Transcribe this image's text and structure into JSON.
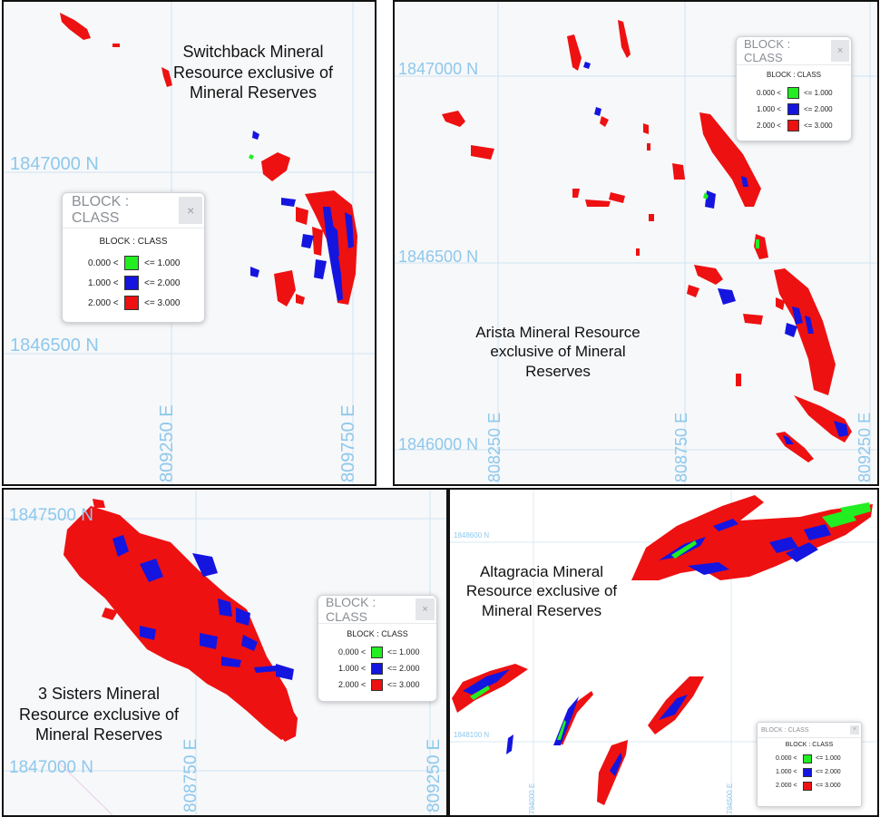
{
  "legend": {
    "header": "BLOCK : CLASS",
    "subtitle": "BLOCK : CLASS",
    "close_glyph": "×",
    "rows": [
      {
        "low": "0.000 <",
        "high": "<= 1.000",
        "color": "#22ee22"
      },
      {
        "low": "1.000 <",
        "high": "<= 2.000",
        "color": "#1515e0"
      },
      {
        "low": "2.000 <",
        "high": "<= 3.000",
        "color": "#ee1111"
      }
    ]
  },
  "panels": {
    "switchback": {
      "title": "Switchback Mineral Resource exclusive of Mineral Reserves",
      "northings": [
        "1847000 N",
        "1846500 N"
      ],
      "eastings": [
        "809250 E",
        "809750 E"
      ]
    },
    "arista": {
      "title": "Arista Mineral Resource exclusive of Mineral Reserves",
      "northings": [
        "1847000 N",
        "1846500 N",
        "1846000 N"
      ],
      "eastings": [
        "808250 E",
        "808750 E",
        "809250 E"
      ]
    },
    "three_sisters": {
      "title": "3 Sisters Mineral Resource exclusive of Mineral Reserves",
      "northings": [
        "1847500 N",
        "1847000 N"
      ],
      "eastings": [
        "808750 E",
        "809250 E"
      ]
    },
    "altagracia": {
      "title": "Altagracia Mineral Resource exclusive of Mineral Reserves",
      "northings": [
        "1848600 N",
        "1848100 N"
      ],
      "eastings": [
        "794000 E",
        "794500 E"
      ]
    }
  },
  "colors": {
    "class1": "#22ee22",
    "class2": "#1515e0",
    "class3": "#ee1111",
    "grid": "#cfe3f1",
    "grid_label": "#8ec8ec"
  }
}
